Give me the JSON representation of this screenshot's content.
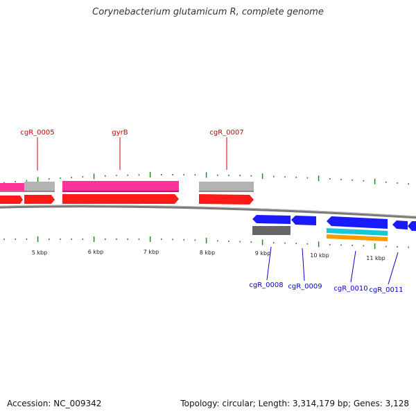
{
  "title": "Corynebacterium glutamicum R, complete genome",
  "footer": {
    "accession": "Accession: NC_009342",
    "topology": "Topology: circular; Length: 3,314,179 bp; Genes: 3,128"
  },
  "scale_labels": [
    "5 kbp",
    "6 kbp",
    "7 kbp",
    "8 kbp",
    "9 kbp",
    "10 kbp",
    "11 kbp"
  ],
  "gene_labels_top": [
    "cgR_0005",
    "gyrB",
    "cgR_0007"
  ],
  "gene_labels_bottom": [
    "cgR_0008",
    "cgR_0009",
    "cgR_0010",
    "cgR_0011"
  ],
  "colors": {
    "forward_label": "#cc0000",
    "reverse_label": "#0000cc",
    "tick": "#1a8a1a",
    "cds_forward": "#ff1a1a",
    "cds_reverse": "#1a1aff",
    "feature_pink": "#ff3399",
    "feature_gray": "#b3b3b3",
    "feature_dark_gray": "#666666",
    "feature_cyan": "#19c8d8",
    "feature_orange": "#ff9900",
    "backbone": "#7a7a7a"
  }
}
